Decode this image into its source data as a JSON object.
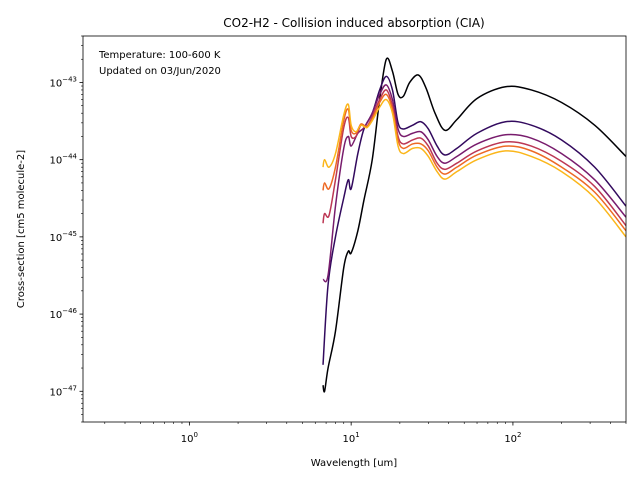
{
  "chart_data": {
    "type": "line",
    "title": "CO2-H2 - Collision induced absorption (CIA)",
    "xlabel": "Wavelength [um]",
    "ylabel": "Cross-section [cm5 molecule-2]",
    "x_scale": "log",
    "y_scale": "log",
    "xlim": [
      0.22,
      500
    ],
    "ylim": [
      4e-48,
      4e-43
    ],
    "x_ticks": [
      {
        "value": 1,
        "mantissa": "10",
        "exponent": "0"
      },
      {
        "value": 10,
        "mantissa": "10",
        "exponent": "1"
      },
      {
        "value": 100,
        "mantissa": "10",
        "exponent": "2"
      }
    ],
    "y_ticks": [
      {
        "value": 1e-47,
        "mantissa": "10",
        "exponent": "−47"
      },
      {
        "value": 1e-46,
        "mantissa": "10",
        "exponent": "−46"
      },
      {
        "value": 1e-45,
        "mantissa": "10",
        "exponent": "−45"
      },
      {
        "value": 1e-44,
        "mantissa": "10",
        "exponent": "−44"
      },
      {
        "value": 1e-43,
        "mantissa": "10",
        "exponent": "−43"
      }
    ],
    "grid": false,
    "annotations": [
      "Temperature: 100-600 K",
      "Updated on 03/Jun/2020"
    ],
    "series": [
      {
        "color": "#000004",
        "x": [
          6.7,
          6.85,
          7.2,
          8.0,
          9.0,
          9.6,
          10.0,
          11.0,
          12.0,
          13.5,
          15.0,
          16.5,
          18.0,
          19.5,
          21.0,
          23.0,
          26.0,
          29.0,
          33.0,
          38.0,
          45.0,
          60.0,
          90.0,
          130.0,
          200.0,
          320.0,
          500.0
        ],
        "y": [
          1.2e-47,
          1e-47,
          2e-47,
          6e-47,
          4e-46,
          6.5e-46,
          6.2e-46,
          1.2e-45,
          3e-45,
          1e-44,
          6e-44,
          2e-43,
          1.4e-43,
          7e-44,
          6.6e-44,
          1e-43,
          1.25e-43,
          8.5e-44,
          4e-44,
          2.4e-44,
          3.3e-44,
          6.2e-44,
          8.8e-44,
          8e-44,
          5.5e-44,
          2.8e-44,
          1.1e-44
        ]
      },
      {
        "color": "#320a5e",
        "x": [
          6.7,
          7.2,
          8.0,
          9.0,
          9.6,
          10.0,
          11.0,
          12.0,
          13.5,
          15.0,
          16.5,
          18.0,
          19.5,
          21.0,
          24.0,
          27.0,
          30.0,
          34.0,
          38.0,
          45.0,
          60.0,
          90.0,
          130.0,
          200.0,
          320.0,
          500.0
        ],
        "y": [
          2.2e-47,
          2.4e-46,
          1e-45,
          3.2e-45,
          5.5e-45,
          4.2e-45,
          1.2e-44,
          2.5e-44,
          4e-44,
          8e-44,
          1.2e-43,
          8e-44,
          3e-44,
          2.5e-44,
          2.8e-44,
          3.1e-44,
          2.5e-44,
          1.5e-44,
          1.15e-44,
          1.4e-44,
          2.2e-44,
          3.1e-44,
          2.8e-44,
          1.8e-44,
          8e-45,
          2.5e-45
        ]
      },
      {
        "color": "#781c6d",
        "x": [
          6.7,
          7.2,
          8.0,
          9.0,
          9.6,
          10.0,
          11.0,
          12.0,
          13.5,
          15.0,
          16.5,
          18.0,
          19.5,
          21.0,
          24.0,
          27.0,
          30.0,
          34.0,
          38.0,
          45.0,
          60.0,
          90.0,
          130.0,
          200.0,
          320.0,
          500.0
        ],
        "y": [
          2.8e-46,
          3.2e-46,
          2.5e-45,
          1.4e-44,
          2e-44,
          1.5e-44,
          2.2e-44,
          2.6e-44,
          4e-44,
          7e-44,
          9.3e-44,
          6e-44,
          2.5e-44,
          2e-44,
          2.2e-44,
          2.3e-44,
          1.8e-44,
          1.1e-44,
          9e-45,
          1.1e-44,
          1.6e-44,
          2.1e-44,
          1.9e-44,
          1.2e-44,
          5.5e-45,
          1.8e-45
        ]
      },
      {
        "color": "#bc3754",
        "x": [
          6.7,
          6.85,
          7.3,
          8.0,
          9.0,
          9.6,
          10.0,
          10.7,
          11.5,
          12.5,
          13.5,
          15.0,
          16.5,
          18.0,
          19.5,
          21.0,
          24.0,
          27.0,
          30.0,
          34.0,
          38.0,
          45.0,
          60.0,
          90.0,
          130.0,
          200.0,
          320.0,
          500.0
        ],
        "y": [
          1.5e-45,
          2e-45,
          1.9e-45,
          5.5e-45,
          2.6e-44,
          3.5e-44,
          2e-44,
          2e-44,
          2.8e-44,
          2.7e-44,
          3.6e-44,
          6e-44,
          8e-44,
          5e-44,
          2e-44,
          1.6e-44,
          1.8e-44,
          1.9e-44,
          1.5e-44,
          9e-45,
          7.5e-45,
          9e-45,
          1.3e-44,
          1.7e-44,
          1.5e-44,
          9.5e-45,
          4.5e-45,
          1.4e-45
        ]
      },
      {
        "color": "#ed6925",
        "x": [
          6.7,
          6.85,
          7.3,
          8.0,
          9.0,
          9.6,
          10.0,
          10.7,
          11.5,
          12.5,
          13.5,
          15.0,
          16.5,
          18.0,
          19.5,
          21.0,
          24.0,
          27.0,
          30.0,
          34.0,
          38.0,
          45.0,
          60.0,
          90.0,
          130.0,
          200.0,
          320.0,
          500.0
        ],
        "y": [
          4e-45,
          5e-45,
          4.2e-45,
          8e-45,
          3.2e-44,
          4.5e-44,
          2.4e-44,
          2.2e-44,
          2.9e-44,
          2.7e-44,
          3.4e-44,
          5.5e-44,
          7e-44,
          4.5e-44,
          1.8e-44,
          1.4e-44,
          1.6e-44,
          1.6e-44,
          1.3e-44,
          8e-45,
          6.5e-45,
          8e-45,
          1.15e-44,
          1.5e-44,
          1.3e-44,
          8e-45,
          3.8e-45,
          1.2e-45
        ]
      },
      {
        "color": "#fbb61a",
        "x": [
          6.7,
          6.85,
          7.3,
          8.0,
          9.0,
          9.6,
          10.0,
          10.7,
          11.5,
          12.5,
          13.5,
          15.0,
          16.5,
          18.0,
          19.5,
          21.0,
          24.0,
          27.0,
          30.0,
          34.0,
          38.0,
          45.0,
          60.0,
          90.0,
          130.0,
          200.0,
          320.0,
          500.0
        ],
        "y": [
          8e-45,
          1e-44,
          8e-45,
          1.2e-44,
          3.8e-44,
          5.2e-44,
          2.8e-44,
          2.3e-44,
          2.8e-44,
          2.6e-44,
          3.2e-44,
          4.8e-44,
          6e-44,
          4e-44,
          1.5e-44,
          1.2e-44,
          1.4e-44,
          1.4e-44,
          1.1e-44,
          7e-45,
          5.6e-45,
          7e-45,
          1e-44,
          1.3e-44,
          1.1e-44,
          7e-45,
          3.2e-45,
          1e-45
        ]
      }
    ]
  }
}
